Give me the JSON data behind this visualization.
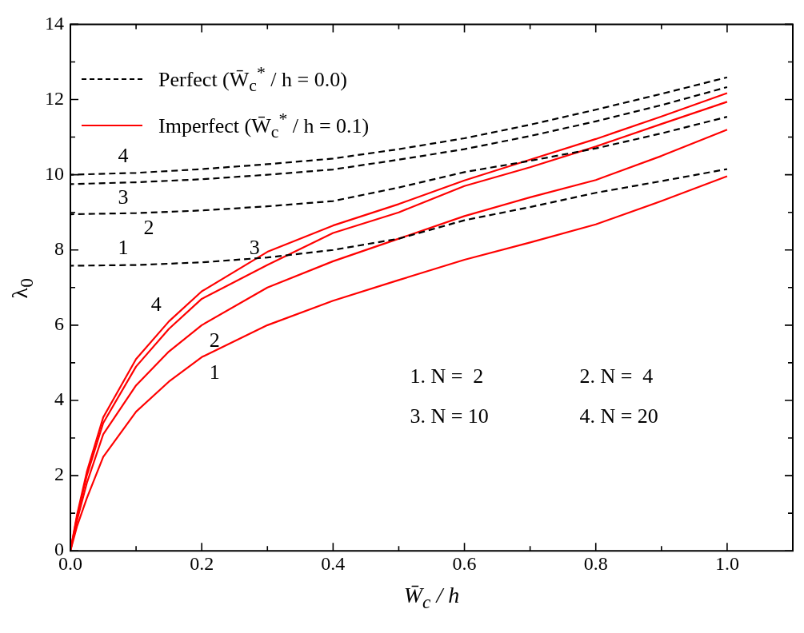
{
  "chart_data": {
    "type": "line",
    "xlabel": "W̄$_{c}$ / h",
    "ylabel": "λ$_{0}$",
    "legend": "top left",
    "grid": false,
    "marker": "none",
    "xlim": [
      0,
      1.1
    ],
    "ylim": [
      0,
      14
    ],
    "xticks": [
      {
        "value": 0,
        "label": "0.0"
      },
      {
        "value": 0.1,
        "label": null
      },
      {
        "value": 0.2,
        "label": "0.2"
      },
      {
        "value": 0.3,
        "label": null
      },
      {
        "value": 0.4,
        "label": "0.4"
      },
      {
        "value": 0.5,
        "label": null
      },
      {
        "value": 0.6,
        "label": "0.6"
      },
      {
        "value": 0.7,
        "label": null
      },
      {
        "value": 0.8,
        "label": "0.8"
      },
      {
        "value": 0.9,
        "label": null
      },
      {
        "value": 1,
        "label": "1.0"
      }
    ],
    "yticks": [
      0,
      {
        "value": 1,
        "label": null
      },
      2,
      {
        "value": 3,
        "label": null
      },
      4,
      {
        "value": 5,
        "label": null
      },
      6,
      {
        "value": 7,
        "label": null
      },
      8,
      {
        "value": 9,
        "label": null
      },
      10,
      {
        "value": 11,
        "label": null
      },
      12,
      {
        "value": 13,
        "label": null
      },
      14
    ],
    "x": [
      0,
      0.01,
      0.025,
      0.05,
      0.1,
      0.15,
      0.2,
      0.3,
      0.4,
      0.5,
      0.6,
      0.7,
      0.8,
      0.9,
      1.0
    ],
    "series": [
      {
        "name": "Perfect (W̄$_{c}$$^{*}$ / h = 0.0)",
        "color": "#000000",
        "line_style": "dashed",
        "x": [
          0,
          0.1,
          0.2,
          0.3,
          0.4,
          0.5,
          0.6,
          0.7,
          0.8,
          0.9,
          1.0
        ],
        "values": [
          10.0,
          10.05,
          10.15,
          10.28,
          10.43,
          10.68,
          10.97,
          11.33,
          11.73,
          12.15,
          12.59
        ]
      },
      {
        "color": "#000000",
        "line_style": "dashed",
        "x": [
          0,
          0.1,
          0.2,
          0.3,
          0.4,
          0.5,
          0.6,
          0.7,
          0.8,
          0.9,
          1.0
        ],
        "values": [
          9.75,
          9.8,
          9.88,
          10.0,
          10.14,
          10.4,
          10.68,
          11.03,
          11.42,
          11.85,
          12.33
        ]
      },
      {
        "color": "#000000",
        "line_style": "dashed",
        "x": [
          0,
          0.1,
          0.2,
          0.3,
          0.4,
          0.5,
          0.6,
          0.7,
          0.8,
          0.9,
          1.0
        ],
        "values": [
          8.95,
          8.98,
          9.05,
          9.16,
          9.3,
          9.66,
          10.07,
          10.37,
          10.7,
          11.1,
          11.54
        ]
      },
      {
        "color": "#000000",
        "line_style": "dashed",
        "x": [
          0,
          0.1,
          0.2,
          0.3,
          0.4,
          0.5,
          0.6,
          0.7,
          0.8,
          0.9,
          1.0
        ],
        "values": [
          7.58,
          7.6,
          7.67,
          7.8,
          8.0,
          8.3,
          8.79,
          9.14,
          9.52,
          9.83,
          10.15
        ]
      },
      {
        "name": "Imperfect (W̄$_{c}$$^{*}$ / h = 0.1)",
        "color": "#ff0000",
        "line_style": "solid",
        "values": [
          0,
          0.95,
          2.1,
          3.55,
          5.1,
          6.1,
          6.9,
          7.95,
          8.65,
          9.22,
          9.85,
          10.4,
          10.95,
          11.55,
          12.17
        ]
      },
      {
        "color": "#ff0000",
        "line_style": "solid",
        "values": [
          0,
          0.9,
          2.0,
          3.4,
          4.9,
          5.9,
          6.7,
          7.6,
          8.45,
          9.0,
          9.7,
          10.2,
          10.75,
          11.35,
          11.94
        ]
      },
      {
        "color": "#ff0000",
        "line_style": "solid",
        "values": [
          0,
          0.8,
          1.8,
          3.1,
          4.4,
          5.3,
          6.0,
          7.0,
          7.7,
          8.3,
          8.9,
          9.4,
          9.86,
          10.5,
          11.2
        ]
      },
      {
        "color": "#ff0000",
        "line_style": "solid",
        "values": [
          0,
          0.65,
          1.4,
          2.5,
          3.7,
          4.5,
          5.15,
          6.0,
          6.65,
          7.2,
          7.74,
          8.2,
          8.68,
          9.3,
          9.96
        ]
      }
    ],
    "annotations": [
      {
        "text": "4",
        "x": 0.1,
        "y": 10.05
      },
      {
        "text": "3",
        "x": 0.1,
        "y": 9.8
      },
      {
        "text": "2",
        "x": 0.1,
        "y": 8.98
      },
      {
        "text": "1",
        "x": 0.1,
        "y": 7.6
      },
      {
        "text": "4",
        "x": 0.15,
        "y": 6.1
      },
      {
        "text": "3",
        "x": 0.3,
        "y": 7.6
      },
      {
        "text": "2",
        "x": 0.2,
        "y": 6.0
      },
      {
        "text": "1",
        "x": 0.2,
        "y": 5.15
      },
      "1. N =  2",
      "2. N =  4",
      "3. N = 10",
      "4. N = 20"
    ]
  }
}
